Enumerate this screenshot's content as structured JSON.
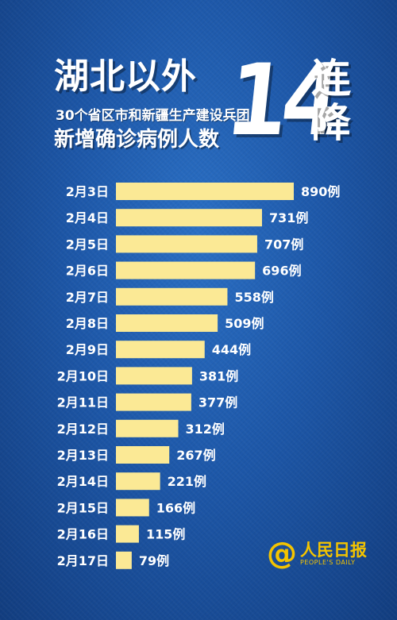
{
  "header": {
    "title": "湖北以外",
    "subtitle": "30个省区市和新疆生产建设兵团",
    "subject": "新增确诊病例人数",
    "big_number": "14",
    "big_chars": [
      "连",
      "降"
    ]
  },
  "logo": {
    "at_symbol": "@",
    "name": "人民日报",
    "english": "PEOPLE'S DAILY"
  },
  "colors": {
    "background": "#1d57a8",
    "bar": "#fbe995",
    "text": "#ffffff",
    "logo": "#f4c400"
  },
  "chart_data": {
    "type": "bar",
    "orientation": "horizontal",
    "value_suffix": "例",
    "categories": [
      "2月3日",
      "2月4日",
      "2月5日",
      "2月6日",
      "2月7日",
      "2月8日",
      "2月9日",
      "2月10日",
      "2月11日",
      "2月12日",
      "2月13日",
      "2月14日",
      "2月15日",
      "2月16日",
      "2月17日"
    ],
    "values": [
      890,
      731,
      707,
      696,
      558,
      509,
      444,
      381,
      377,
      312,
      267,
      221,
      166,
      115,
      79
    ],
    "data_labels": [
      "890例",
      "731例",
      "707例",
      "696例",
      "558例",
      "509例",
      "444例",
      "381例",
      "377例",
      "312例",
      "267例",
      "221例",
      "166例",
      "115例",
      "79例"
    ],
    "title": "",
    "xlabel": "",
    "ylabel": "",
    "xlim": [
      0,
      890
    ],
    "grid": false,
    "legend": "none"
  }
}
